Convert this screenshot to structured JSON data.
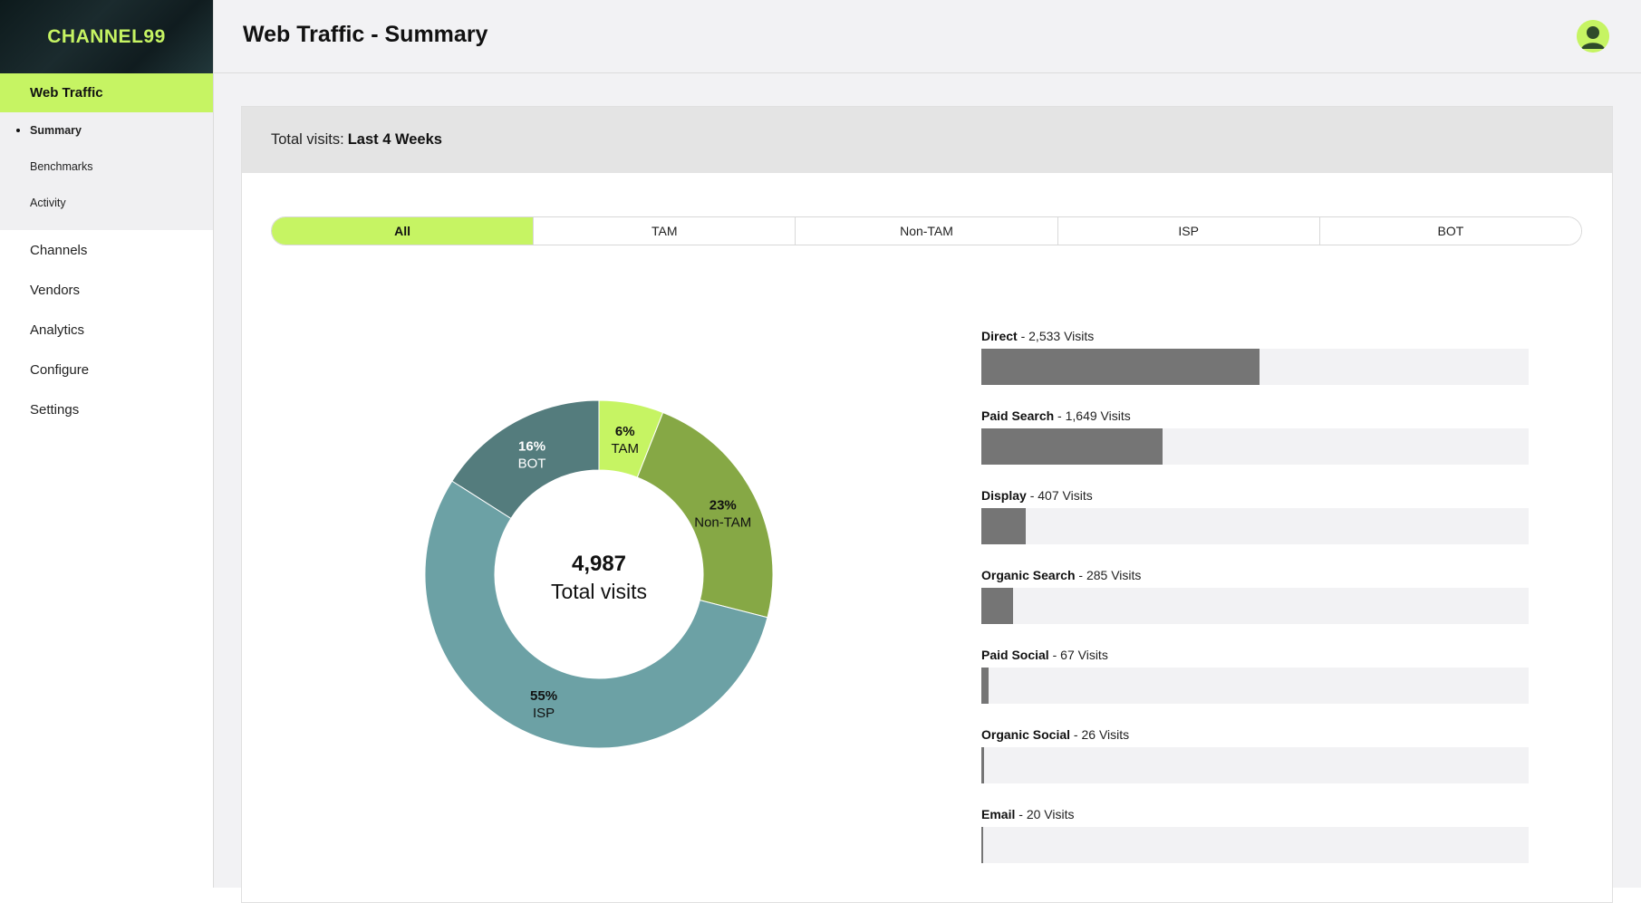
{
  "app": {
    "logo": "CHANNEL99"
  },
  "sidebar": {
    "active_section": "Web Traffic",
    "sub_items": [
      {
        "label": "Summary",
        "current": true
      },
      {
        "label": "Benchmarks",
        "current": false
      },
      {
        "label": "Activity",
        "current": false
      }
    ],
    "items": [
      {
        "label": "Channels"
      },
      {
        "label": "Vendors"
      },
      {
        "label": "Analytics"
      },
      {
        "label": "Configure"
      },
      {
        "label": "Settings"
      }
    ]
  },
  "header": {
    "title": "Web Traffic - Summary"
  },
  "card": {
    "prefix": "Total visits:",
    "period": "Last 4 Weeks"
  },
  "tabs": [
    {
      "label": "All",
      "active": true
    },
    {
      "label": "TAM",
      "active": false
    },
    {
      "label": "Non-TAM",
      "active": false
    },
    {
      "label": "ISP",
      "active": false
    },
    {
      "label": "BOT",
      "active": false
    }
  ],
  "colors": {
    "accent": "#c6f463",
    "tam": "#c6f463",
    "non_tam": "#86a845",
    "isp": "#6ca1a5",
    "bot": "#547c7d",
    "bar_fill": "#757575",
    "bar_track": "#f2f2f4"
  },
  "chart_data": [
    {
      "type": "pie",
      "variant": "donut",
      "center_value": "4,987",
      "center_label": "Total visits",
      "slices": [
        {
          "name": "TAM",
          "percent_label": "6%",
          "value": 6,
          "color": "#c6f463"
        },
        {
          "name": "Non-TAM",
          "percent_label": "23%",
          "value": 23,
          "color": "#86a845"
        },
        {
          "name": "ISP",
          "percent_label": "55%",
          "value": 55,
          "color": "#6ca1a5"
        },
        {
          "name": "BOT",
          "percent_label": "16%",
          "value": 16,
          "color": "#547c7d"
        }
      ]
    },
    {
      "type": "bar",
      "orientation": "horizontal",
      "max": 4987,
      "unit_suffix": "Visits",
      "categories": [
        "Direct",
        "Paid Search",
        "Display",
        "Organic Search",
        "Paid Social",
        "Organic Social",
        "Email"
      ],
      "values": [
        2533,
        1649,
        407,
        285,
        67,
        26,
        20
      ],
      "value_labels": [
        "2,533 Visits",
        "1,649 Visits",
        "407 Visits",
        "285 Visits",
        "67 Visits",
        "26 Visits",
        "20 Visits"
      ]
    }
  ]
}
